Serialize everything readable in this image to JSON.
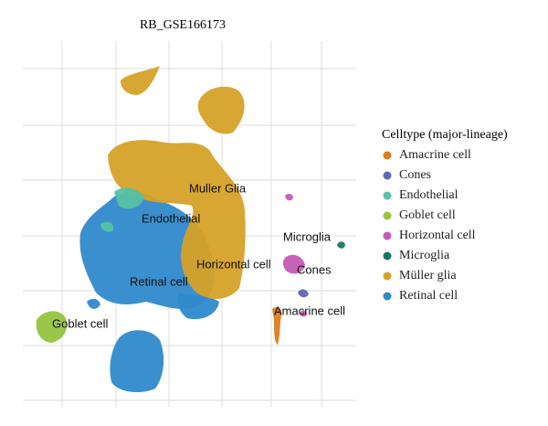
{
  "chart_data": {
    "type": "scatter",
    "title": "RB_GSE166173",
    "legend_title": "Celltype (major-lineage)",
    "grid": true,
    "series": [
      {
        "name": "Amacrine cell",
        "color": "#e07b1f"
      },
      {
        "name": "Cones",
        "color": "#6366b0"
      },
      {
        "name": "Endothelial",
        "color": "#55c1a3"
      },
      {
        "name": "Goblet cell",
        "color": "#95c43f"
      },
      {
        "name": "Horizontal cell",
        "color": "#c55ab5"
      },
      {
        "name": "Microglia",
        "color": "#1b7565"
      },
      {
        "name": "Müller glia",
        "color": "#d6a127"
      },
      {
        "name": "Retinal cell",
        "color": "#2f8acb"
      }
    ],
    "annotations": [
      "Muller Glia",
      "Endothelial",
      "Microglia",
      "Horizontal cell",
      "Cones",
      "Retinal cell",
      "Amacrine cell",
      "Goblet cell"
    ]
  }
}
